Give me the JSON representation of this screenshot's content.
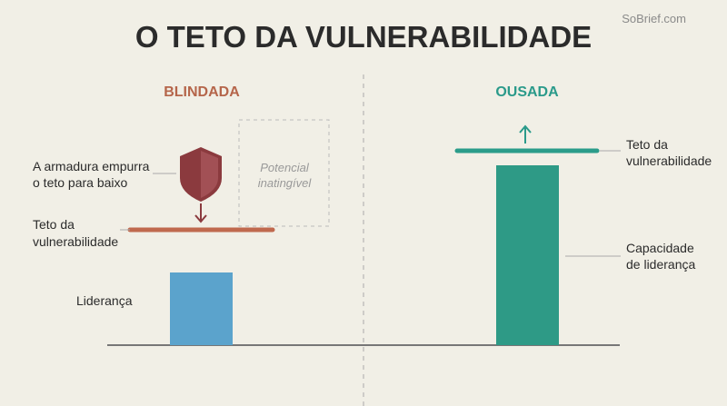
{
  "header": {
    "title": "O TETO DA VULNERABILIDADE",
    "watermark": "SoBrief.com"
  },
  "left": {
    "title": "BLINDADA",
    "armor_note": [
      "A armadura empurra",
      "o teto para baixo"
    ],
    "potential": [
      "Potencial",
      "inatingível"
    ],
    "ceiling": [
      "Teto da",
      "vulnerabilidade"
    ],
    "bar_label": "Liderança"
  },
  "right": {
    "title": "OUSADA",
    "ceiling": [
      "Teto da",
      "vulnerabilidade"
    ],
    "bar_label": [
      "Capacidade",
      "de liderança"
    ]
  }
}
